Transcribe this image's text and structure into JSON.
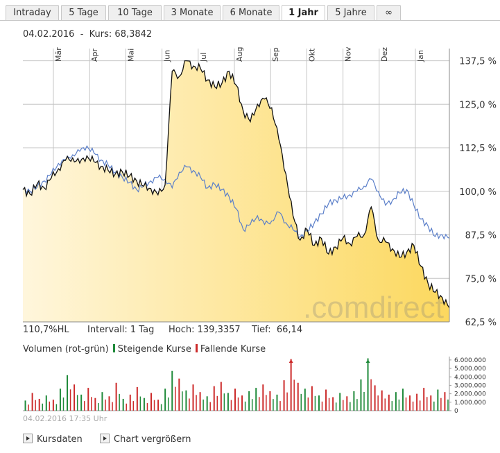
{
  "tabs": [
    {
      "label": "Intraday",
      "active": false
    },
    {
      "label": "5 Tage",
      "active": false
    },
    {
      "label": "10 Tage",
      "active": false
    },
    {
      "label": "3 Monate",
      "active": false
    },
    {
      "label": "6 Monate",
      "active": false
    },
    {
      "label": "1 Jahr",
      "active": true
    },
    {
      "label": "5 Jahre",
      "active": false
    },
    {
      "label": "∞",
      "active": false
    }
  ],
  "header": {
    "date": "04.02.2016",
    "separator": "-",
    "price_label": "Kurs: 68,3842"
  },
  "stats": {
    "range": "110,7%HL",
    "interval": "Intervall: 1 Tag",
    "high": "Hoch: 139,3357",
    "low": "Tief:  66,14"
  },
  "volume_legend": {
    "title": "Volumen (rot-grün)",
    "rising": "Steigende Kurse",
    "falling": "Fallende Kurse"
  },
  "timestamp": "04.02.2016 17:35 Uhr",
  "links": {
    "kursdaten": "Kursdaten",
    "enlarge": "Chart vergrößern"
  },
  "watermark": ".comdirect",
  "colors": {
    "rising": "#1f8a3a",
    "falling": "#cc2a2a",
    "price_line": "#111111",
    "benchmark_line": "#5b7fc9",
    "fill_light": "#fff6dc",
    "fill_dark": "#fcd85e"
  },
  "chart_data": [
    {
      "type": "area",
      "title": "",
      "y_unit": "%",
      "y_ticks": [
        "137,5 %",
        "125,0 %",
        "112,5 %",
        "100,0 %",
        "87,5 %",
        "75,0 %",
        "62,5 %"
      ],
      "ylim": [
        62.5,
        141
      ],
      "x_ticks": [
        "Mär",
        "Apr",
        "Mai",
        "Jun",
        "Jul",
        "Aug",
        "Sep",
        "Okt",
        "Nov",
        "Dez",
        "Jan"
      ],
      "grid": true,
      "x": [
        0,
        1,
        2,
        3,
        4,
        5,
        6,
        7,
        8,
        9,
        10,
        11,
        12,
        13,
        14,
        15,
        16,
        17,
        18,
        19,
        20,
        21,
        22,
        23,
        24,
        25,
        26,
        27,
        28,
        29,
        30,
        31,
        32,
        33,
        34,
        35,
        36,
        37,
        38,
        39,
        40,
        41,
        42,
        43,
        44,
        45,
        46,
        47,
        48,
        49,
        50,
        51,
        52,
        53,
        54,
        55,
        56,
        57,
        58,
        59,
        60
      ],
      "series": [
        {
          "values": [
            100.5,
            99.2,
            102.1,
            101.0,
            103.8,
            106.5,
            108.9,
            109.6,
            108.1,
            110.2,
            108.5,
            107.2,
            106.0,
            105.0,
            105.6,
            104.4,
            103.0,
            101.5,
            100.8,
            99.0,
            101.8,
            134.5,
            133.0,
            137.5,
            136.0,
            135.2,
            132.0,
            130.0,
            131.0,
            134.5,
            130.5,
            123.0,
            120.0,
            125.0,
            126.5,
            124.0,
            115.0,
            105.0,
            93.0,
            86.0,
            89.0,
            84.5,
            86.5,
            82.0,
            84.0,
            86.5,
            85.0,
            87.0,
            87.5,
            95.5,
            86.0,
            85.5,
            83.5,
            81.0,
            82.5,
            84.5,
            78.5,
            73.5,
            71.0,
            69.5,
            66.5
          ]
        },
        {
          "values": [
            100.5,
            100.0,
            101.2,
            103.0,
            105.0,
            108.0,
            109.0,
            110.5,
            111.5,
            113.0,
            111.0,
            109.0,
            107.5,
            105.5,
            104.0,
            102.5,
            100.5,
            101.5,
            103.0,
            104.0,
            103.5,
            101.0,
            105.5,
            107.0,
            106.0,
            104.0,
            101.0,
            102.0,
            100.5,
            98.5,
            95.0,
            89.0,
            90.5,
            93.0,
            90.5,
            91.5,
            94.0,
            91.0,
            89.0,
            87.0,
            88.5,
            91.0,
            93.5,
            96.5,
            97.5,
            98.0,
            99.0,
            100.0,
            101.5,
            103.5,
            100.0,
            96.0,
            97.5,
            99.5,
            100.5,
            96.0,
            92.0,
            90.0,
            87.0,
            87.5,
            86.5
          ]
        }
      ]
    },
    {
      "type": "bar",
      "title": "",
      "y_ticks": [
        "6.000.000",
        "5.000.000",
        "4.000.000",
        "3.000.000",
        "2.000.000",
        "1.000.000",
        "0"
      ],
      "ylim": [
        0,
        6400000
      ],
      "grid": false,
      "values": [
        1200000,
        2100000,
        1400000,
        1800000,
        1300000,
        2600000,
        4200000,
        3100000,
        1900000,
        2700000,
        1500000,
        2200000,
        1700000,
        3300000,
        1400000,
        1900000,
        2800000,
        1500000,
        2100000,
        1300000,
        2600000,
        4700000,
        3800000,
        2400000,
        3100000,
        2200000,
        1700000,
        2900000,
        3400000,
        2100000,
        2600000,
        1800000,
        2300000,
        2700000,
        3100000,
        2300000,
        1900000,
        3600000,
        6100000,
        3300000,
        2600000,
        2900000,
        1800000,
        2500000,
        1600000,
        2100000,
        1700000,
        2300000,
        3700000,
        6200000,
        3000000,
        2400000,
        1900000,
        2200000,
        2600000,
        1800000,
        2000000,
        2700000,
        1800000,
        2500000,
        2200000
      ],
      "direction": [
        "up",
        "down",
        "down",
        "up",
        "down",
        "up",
        "up",
        "down",
        "up",
        "down",
        "down",
        "up",
        "down",
        "down",
        "up",
        "down",
        "down",
        "up",
        "down",
        "down",
        "up",
        "up",
        "down",
        "up",
        "down",
        "down",
        "up",
        "down",
        "down",
        "up",
        "down",
        "down",
        "up",
        "up",
        "down",
        "down",
        "up",
        "down",
        "down",
        "down",
        "up",
        "down",
        "up",
        "down",
        "down",
        "up",
        "down",
        "up",
        "up",
        "up",
        "down",
        "down",
        "down",
        "up",
        "up",
        "down",
        "down",
        "down",
        "down",
        "up",
        "down"
      ]
    }
  ]
}
